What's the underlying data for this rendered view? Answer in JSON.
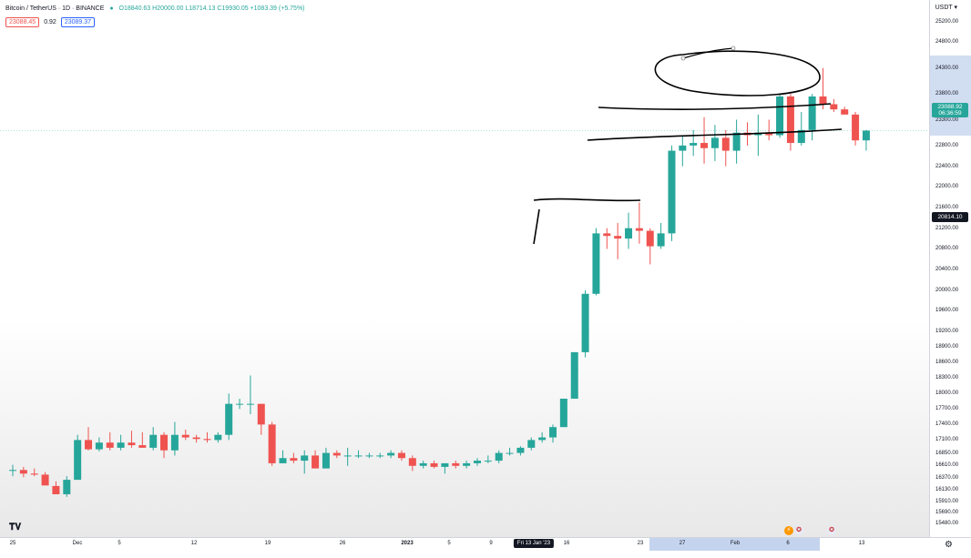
{
  "header": {
    "title": "Bitcoin / TetherUS · 1D · BINANCE",
    "ohlc": "O18840.63 H20000.00 L18714.13 C19930.05 +1083.39 (+5.75%)"
  },
  "quotes": {
    "sell": "23088.45",
    "spread": "0.92",
    "buy": "23089.37"
  },
  "price_axis": {
    "currency": "USDT ▾",
    "labels": [
      "25200.00",
      "24800.00",
      "24300.00",
      "23800.00",
      "23300.00",
      "22800.00",
      "22400.00",
      "22000.00",
      "21600.00",
      "21200.00",
      "20800.00",
      "20400.00",
      "20000.00",
      "19600.00",
      "19200.00",
      "18900.00",
      "18600.00",
      "18300.00",
      "18000.00",
      "17700.00",
      "17400.00",
      "17100.00",
      "16850.00",
      "16610.00",
      "16370.00",
      "16130.00",
      "15910.00",
      "15690.00",
      "15480.00"
    ],
    "last_price": "23088.92",
    "countdown": "06:36:59",
    "crosshair_price": "20814.10"
  },
  "time_axis": {
    "labels": [
      "25",
      "Dec",
      "5",
      "12",
      "19",
      "26",
      "2023",
      "5",
      "9",
      "16",
      "23",
      "27",
      "Feb",
      "6",
      "13"
    ],
    "current_date": "Fri 13 Jan '23"
  },
  "colors": {
    "up": "#26a69a",
    "down": "#ef5350",
    "highlight": "#c5d4ee"
  },
  "icons": {
    "logo": "tradingview-logo-icon",
    "settings": "gear-icon",
    "events": [
      "earnings-icon",
      "us-flag-icon",
      "us-flag-icon"
    ]
  },
  "chart_data": {
    "type": "candlestick",
    "symbol": "BTCUSDT",
    "timeframe": "1D",
    "y_range": [
      15380,
      25300
    ],
    "candles": [
      {
        "o": 16520,
        "h": 16620,
        "l": 16400,
        "c": 16520
      },
      {
        "o": 16520,
        "h": 16580,
        "l": 16380,
        "c": 16450
      },
      {
        "o": 16450,
        "h": 16550,
        "l": 16400,
        "c": 16430
      },
      {
        "o": 16430,
        "h": 16480,
        "l": 16250,
        "c": 16220
      },
      {
        "o": 16210,
        "h": 16300,
        "l": 16050,
        "c": 16050
      },
      {
        "o": 16050,
        "h": 16400,
        "l": 16000,
        "c": 16330
      },
      {
        "o": 16330,
        "h": 17200,
        "l": 16330,
        "c": 17100
      },
      {
        "o": 17100,
        "h": 17350,
        "l": 16900,
        "c": 16920
      },
      {
        "o": 16920,
        "h": 17150,
        "l": 16880,
        "c": 17050
      },
      {
        "o": 17050,
        "h": 17250,
        "l": 16900,
        "c": 16950
      },
      {
        "o": 16950,
        "h": 17200,
        "l": 16900,
        "c": 17050
      },
      {
        "o": 17050,
        "h": 17280,
        "l": 16950,
        "c": 17000
      },
      {
        "o": 17000,
        "h": 17250,
        "l": 16950,
        "c": 16950
      },
      {
        "o": 16950,
        "h": 17350,
        "l": 16900,
        "c": 17200
      },
      {
        "o": 17200,
        "h": 17250,
        "l": 16750,
        "c": 16900
      },
      {
        "o": 16900,
        "h": 17450,
        "l": 16800,
        "c": 17200
      },
      {
        "o": 17200,
        "h": 17300,
        "l": 17100,
        "c": 17150
      },
      {
        "o": 17150,
        "h": 17200,
        "l": 17050,
        "c": 17120
      },
      {
        "o": 17120,
        "h": 17250,
        "l": 17050,
        "c": 17100
      },
      {
        "o": 17100,
        "h": 17250,
        "l": 17050,
        "c": 17200
      },
      {
        "o": 17200,
        "h": 18000,
        "l": 17100,
        "c": 17800
      },
      {
        "o": 17800,
        "h": 17900,
        "l": 17700,
        "c": 17800
      },
      {
        "o": 17800,
        "h": 18350,
        "l": 17600,
        "c": 17800
      },
      {
        "o": 17800,
        "h": 17800,
        "l": 17200,
        "c": 17400
      },
      {
        "o": 17400,
        "h": 17450,
        "l": 16600,
        "c": 16650
      },
      {
        "o": 16650,
        "h": 16900,
        "l": 16650,
        "c": 16750
      },
      {
        "o": 16750,
        "h": 16850,
        "l": 16650,
        "c": 16700
      },
      {
        "o": 16700,
        "h": 16900,
        "l": 16450,
        "c": 16800
      },
      {
        "o": 16800,
        "h": 16900,
        "l": 16600,
        "c": 16550
      },
      {
        "o": 16550,
        "h": 16950,
        "l": 16550,
        "c": 16850
      },
      {
        "o": 16850,
        "h": 16900,
        "l": 16750,
        "c": 16800
      },
      {
        "o": 16800,
        "h": 16950,
        "l": 16600,
        "c": 16800
      },
      {
        "o": 16800,
        "h": 16900,
        "l": 16750,
        "c": 16800
      },
      {
        "o": 16800,
        "h": 16850,
        "l": 16750,
        "c": 16800
      },
      {
        "o": 16800,
        "h": 16850,
        "l": 16750,
        "c": 16800
      },
      {
        "o": 16800,
        "h": 16900,
        "l": 16750,
        "c": 16850
      },
      {
        "o": 16850,
        "h": 16900,
        "l": 16700,
        "c": 16750
      },
      {
        "o": 16750,
        "h": 16800,
        "l": 16500,
        "c": 16600
      },
      {
        "o": 16600,
        "h": 16700,
        "l": 16550,
        "c": 16650
      },
      {
        "o": 16650,
        "h": 16700,
        "l": 16550,
        "c": 16580
      },
      {
        "o": 16580,
        "h": 16650,
        "l": 16450,
        "c": 16650
      },
      {
        "o": 16650,
        "h": 16700,
        "l": 16550,
        "c": 16600
      },
      {
        "o": 16600,
        "h": 16700,
        "l": 16550,
        "c": 16650
      },
      {
        "o": 16650,
        "h": 16750,
        "l": 16600,
        "c": 16700
      },
      {
        "o": 16700,
        "h": 16800,
        "l": 16650,
        "c": 16700
      },
      {
        "o": 16700,
        "h": 16900,
        "l": 16650,
        "c": 16850
      },
      {
        "o": 16850,
        "h": 16950,
        "l": 16800,
        "c": 16850
      },
      {
        "o": 16850,
        "h": 16980,
        "l": 16800,
        "c": 16950
      },
      {
        "o": 16950,
        "h": 17150,
        "l": 16900,
        "c": 17100
      },
      {
        "o": 17100,
        "h": 17250,
        "l": 17050,
        "c": 17150
      },
      {
        "o": 17150,
        "h": 17400,
        "l": 17050,
        "c": 17350
      },
      {
        "o": 17350,
        "h": 17900,
        "l": 17350,
        "c": 17900
      },
      {
        "o": 17900,
        "h": 18800,
        "l": 17900,
        "c": 18800
      },
      {
        "o": 18800,
        "h": 20000,
        "l": 18700,
        "c": 19930
      },
      {
        "o": 19930,
        "h": 21200,
        "l": 19900,
        "c": 21100
      },
      {
        "o": 21100,
        "h": 21200,
        "l": 20800,
        "c": 21050
      },
      {
        "o": 21050,
        "h": 21300,
        "l": 20600,
        "c": 21000
      },
      {
        "o": 21000,
        "h": 21500,
        "l": 20800,
        "c": 21200
      },
      {
        "o": 21200,
        "h": 21700,
        "l": 20900,
        "c": 21150
      },
      {
        "o": 21150,
        "h": 21200,
        "l": 20500,
        "c": 20850
      },
      {
        "o": 20850,
        "h": 21300,
        "l": 20800,
        "c": 21100
      },
      {
        "o": 21100,
        "h": 22800,
        "l": 20950,
        "c": 22700
      },
      {
        "o": 22700,
        "h": 23000,
        "l": 22400,
        "c": 22800
      },
      {
        "o": 22800,
        "h": 23100,
        "l": 22600,
        "c": 22850
      },
      {
        "o": 22850,
        "h": 23350,
        "l": 22450,
        "c": 22750
      },
      {
        "o": 22750,
        "h": 23200,
        "l": 22500,
        "c": 22950
      },
      {
        "o": 22950,
        "h": 23100,
        "l": 22400,
        "c": 22700
      },
      {
        "o": 22700,
        "h": 23300,
        "l": 22450,
        "c": 23050
      },
      {
        "o": 23050,
        "h": 23250,
        "l": 22800,
        "c": 23000
      },
      {
        "o": 23000,
        "h": 23400,
        "l": 22600,
        "c": 23050
      },
      {
        "o": 23050,
        "h": 23300,
        "l": 22900,
        "c": 23000
      },
      {
        "o": 23000,
        "h": 23800,
        "l": 22950,
        "c": 23750
      },
      {
        "o": 23750,
        "h": 23800,
        "l": 22700,
        "c": 22850
      },
      {
        "o": 22850,
        "h": 23450,
        "l": 22800,
        "c": 23100
      },
      {
        "o": 23100,
        "h": 23800,
        "l": 22900,
        "c": 23750
      },
      {
        "o": 23750,
        "h": 24300,
        "l": 23500,
        "c": 23600
      },
      {
        "o": 23600,
        "h": 23700,
        "l": 23450,
        "c": 23500
      },
      {
        "o": 23500,
        "h": 23550,
        "l": 23400,
        "c": 23400
      },
      {
        "o": 23400,
        "h": 23450,
        "l": 22800,
        "c": 22900
      },
      {
        "o": 22900,
        "h": 23100,
        "l": 22700,
        "c": 23090
      }
    ],
    "drawings": [
      "ellipse around top range",
      "horizontal trendlines"
    ]
  }
}
